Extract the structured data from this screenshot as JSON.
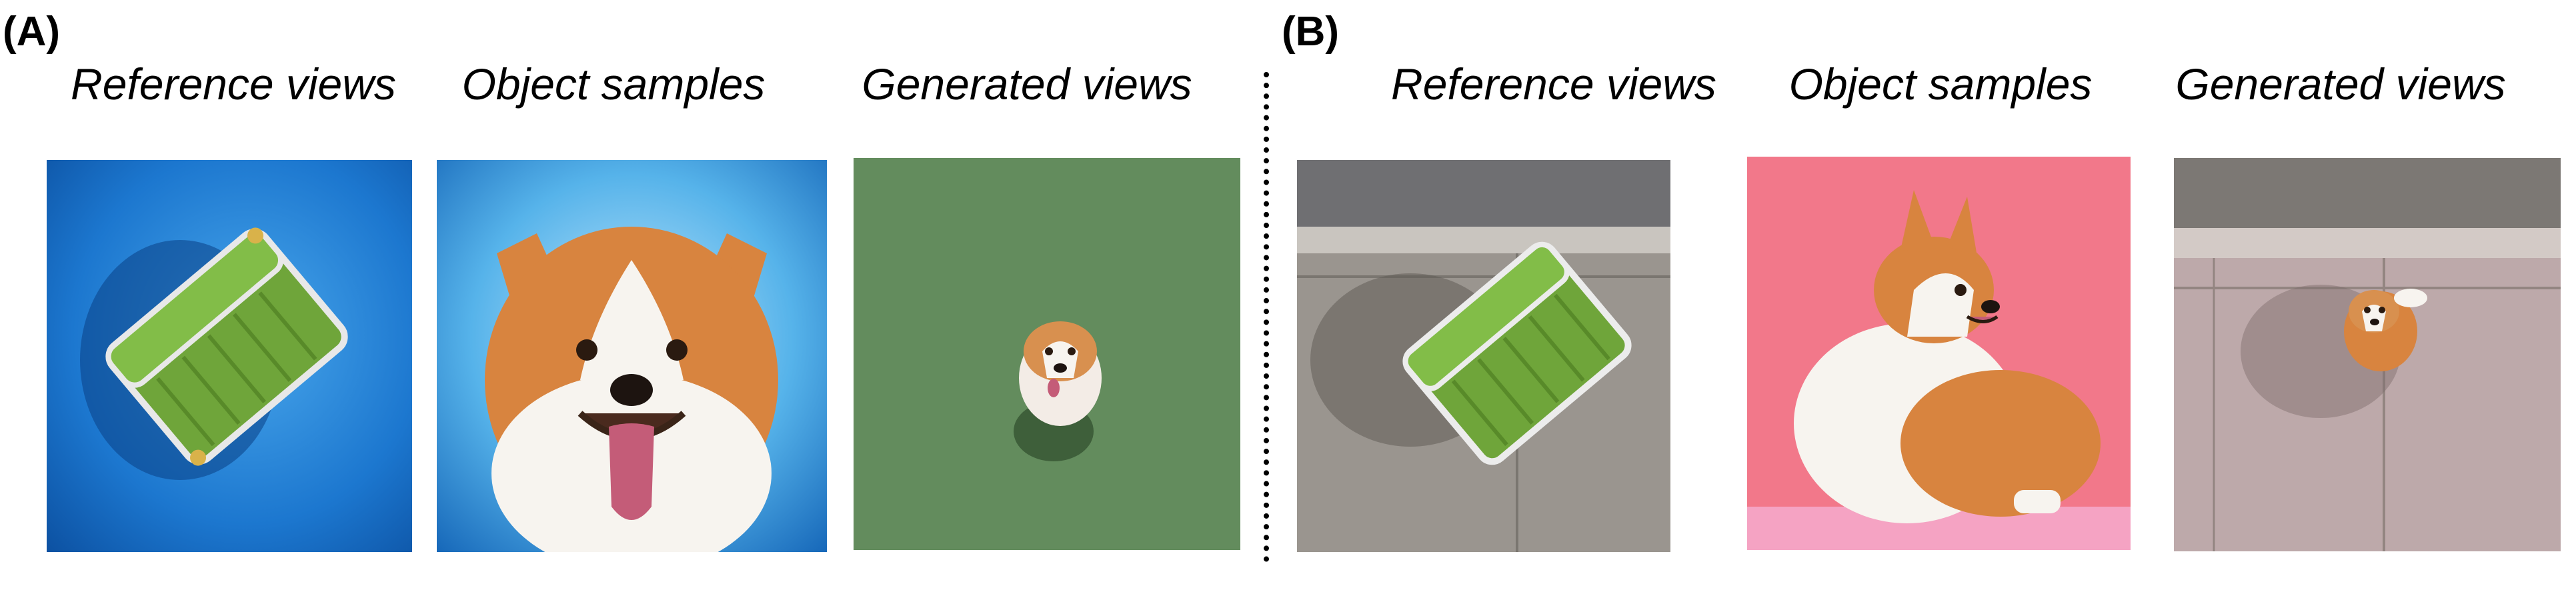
{
  "panels": [
    {
      "label": "(A)",
      "columns": [
        {
          "caption": "Reference views"
        },
        {
          "caption": "Object samples"
        },
        {
          "caption": "Generated views"
        }
      ]
    },
    {
      "label": "(B)",
      "columns": [
        {
          "caption": "Reference views"
        },
        {
          "caption": "Object samples"
        },
        {
          "caption": "Generated views"
        }
      ]
    }
  ],
  "colors": {
    "blue_bg": "#1e7fd6",
    "green_bg": "#5f8b5c",
    "pink_bg": "#f2788a",
    "pavement": "#9a958f",
    "corgi_orange": "#d8843f",
    "chair_green": "#6fa53a"
  }
}
